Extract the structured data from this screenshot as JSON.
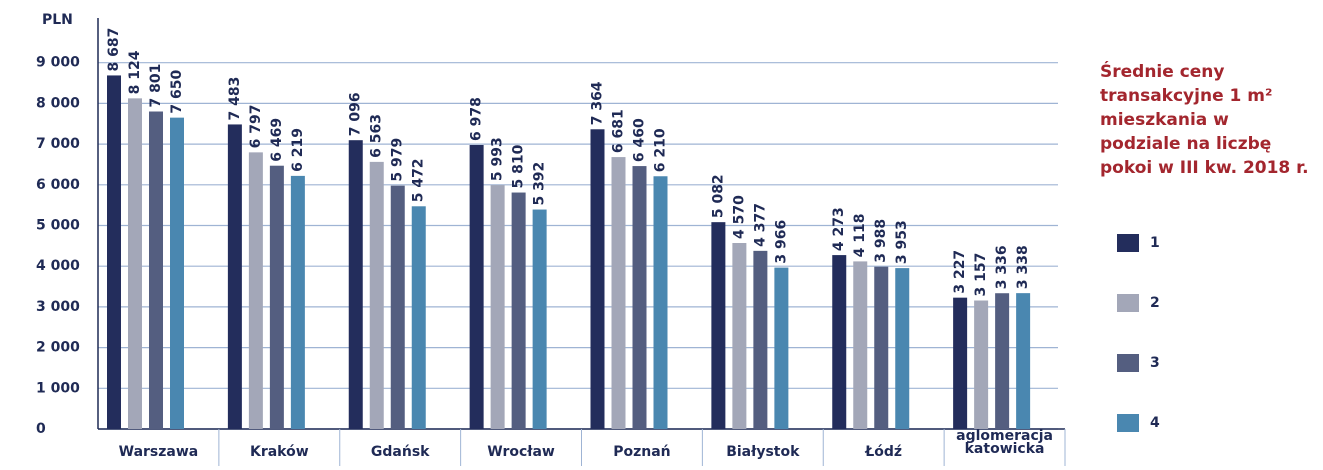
{
  "chart_data": {
    "type": "bar",
    "title": "Średnie ceny transakcyjne 1 m² mieszkania w podziale na liczbę pokoi w III kw. 2018 r.",
    "y_label": "PLN",
    "categories": [
      "Warszawa",
      "Kraków",
      "Gdańsk",
      "Wrocław",
      "Poznań",
      "Białystok",
      "Łódź",
      "aglomeracja katowicka"
    ],
    "series": [
      {
        "name": "1",
        "color": "#232d5c",
        "values": [
          8687,
          7483,
          7096,
          6978,
          7364,
          5082,
          4273,
          3227
        ],
        "value_labels": [
          "8 687",
          "7 483",
          "7 096",
          "6 978",
          "7 364",
          "5 082",
          "4 273",
          "3 227"
        ]
      },
      {
        "name": "2",
        "color": "#a3a7b8",
        "values": [
          8124,
          6797,
          6563,
          5993,
          6681,
          4570,
          4118,
          3157
        ],
        "value_labels": [
          "8 124",
          "6 797",
          "6 563",
          "5 993",
          "6 681",
          "4 570",
          "4 118",
          "3 157"
        ]
      },
      {
        "name": "3",
        "color": "#545e80",
        "values": [
          7801,
          6469,
          5979,
          5810,
          6460,
          4377,
          3988,
          3336
        ],
        "value_labels": [
          "7 801",
          "6 469",
          "5 979",
          "5 810",
          "6 460",
          "4 377",
          "3 988",
          "3 336"
        ]
      },
      {
        "name": "4",
        "color": "#4a87b0",
        "values": [
          7650,
          6219,
          5472,
          5392,
          6210,
          3966,
          3953,
          3338
        ],
        "value_labels": [
          "7 650",
          "6 219",
          "5 472",
          "5 392",
          "6 210",
          "3 966",
          "3 953",
          "3 338"
        ]
      }
    ],
    "ylim": [
      0,
      10000
    ],
    "yticks": [
      0,
      {
        "value": 1000,
        "label": "1 000"
      },
      {
        "value": 2000,
        "label": "2 000"
      },
      {
        "value": 3000,
        "label": "3 000"
      },
      {
        "value": 4000,
        "label": "4 000"
      },
      {
        "value": 5000,
        "label": "5 000"
      },
      {
        "value": 6000,
        "label": "6 000"
      },
      {
        "value": 7000,
        "label": "7 000"
      },
      {
        "value": 8000,
        "label": "8 000"
      },
      {
        "value": 9000,
        "label": "9 000"
      }
    ],
    "grid": true
  }
}
